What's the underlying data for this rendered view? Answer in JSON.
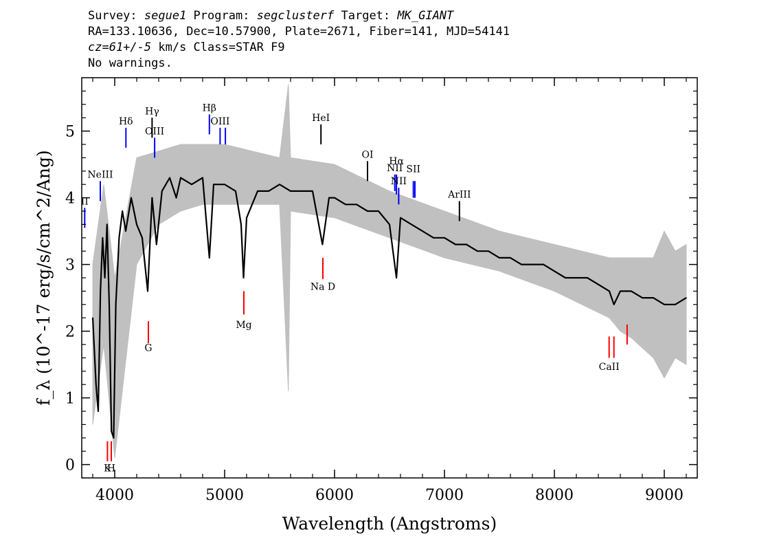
{
  "header": {
    "survey_label": "Survey: ",
    "survey": "segue1",
    "program_label": " Program: ",
    "program": "segclusterf",
    "target_label": " Target: ",
    "target": "MK_GIANT",
    "line2": "RA=133.10636, Dec=10.57900, Plate=2671, Fiber=141, MJD=54141",
    "cz": "cz=61+/-5",
    "line3_rest": " km/s Class=STAR F9",
    "line4": "No warnings."
  },
  "colors": {
    "flux": "#000000",
    "error": "#c0c0c0",
    "emission_line": "#0000ff",
    "absorption_line": "#ff0000",
    "other_line": "#000000"
  },
  "chart_data": {
    "type": "line",
    "xlabel": "Wavelength (Angstroms)",
    "ylabel": "f_λ (10^-17 erg/s/cm^2/Ang)",
    "xlim": [
      3700,
      9300
    ],
    "ylim": [
      -0.2,
      5.8
    ],
    "x_ticks": [
      4000,
      5000,
      6000,
      7000,
      8000,
      9000
    ],
    "y_ticks": [
      0,
      1,
      2,
      3,
      4,
      5
    ],
    "x_tick_labels": [
      "4000",
      "5000",
      "6000",
      "7000",
      "8000",
      "9000"
    ],
    "y_tick_labels": [
      "0",
      "1",
      "2",
      "3",
      "4",
      "5"
    ],
    "series": [
      {
        "role": "flux",
        "x": [
          3800,
          3830,
          3850,
          3870,
          3890,
          3910,
          3930,
          3950,
          3970,
          3990,
          4010,
          4040,
          4070,
          4100,
          4150,
          4200,
          4250,
          4300,
          4340,
          4380,
          4430,
          4500,
          4560,
          4600,
          4700,
          4800,
          4861,
          4900,
          5000,
          5100,
          5150,
          5172,
          5200,
          5300,
          5400,
          5500,
          5600,
          5700,
          5800,
          5890,
          5950,
          6000,
          6100,
          6200,
          6300,
          6400,
          6500,
          6563,
          6600,
          6700,
          6800,
          6900,
          7000,
          7100,
          7200,
          7300,
          7400,
          7500,
          7600,
          7700,
          7800,
          7900,
          8000,
          8100,
          8200,
          8300,
          8400,
          8500,
          8542,
          8600,
          8700,
          8800,
          8900,
          9000,
          9100,
          9200
        ],
        "y": [
          2.2,
          1.2,
          0.8,
          2.6,
          3.4,
          2.8,
          3.6,
          2.4,
          0.5,
          0.4,
          2.4,
          3.4,
          3.8,
          3.5,
          4.0,
          3.6,
          3.4,
          2.6,
          4.0,
          3.3,
          4.1,
          4.3,
          4.0,
          4.3,
          4.2,
          4.3,
          3.1,
          4.2,
          4.2,
          4.1,
          3.6,
          2.8,
          3.7,
          4.1,
          4.1,
          4.2,
          4.1,
          4.1,
          4.1,
          3.3,
          4.0,
          4.0,
          3.9,
          3.9,
          3.8,
          3.8,
          3.6,
          2.8,
          3.7,
          3.6,
          3.5,
          3.4,
          3.4,
          3.3,
          3.3,
          3.2,
          3.2,
          3.1,
          3.1,
          3.0,
          3.0,
          3.0,
          2.9,
          2.8,
          2.8,
          2.8,
          2.7,
          2.6,
          2.4,
          2.6,
          2.6,
          2.5,
          2.5,
          2.4,
          2.4,
          2.5
        ]
      },
      {
        "role": "error",
        "x": [
          3800,
          3900,
          4000,
          4200,
          4400,
          4600,
          4800,
          5000,
          5500,
          5580,
          5600,
          6000,
          6500,
          7000,
          7500,
          8000,
          8500,
          8600,
          8700,
          8900,
          9000,
          9100,
          9200
        ],
        "y_low": [
          0.6,
          1.8,
          0.1,
          3.0,
          3.6,
          3.8,
          3.9,
          3.9,
          3.9,
          1.1,
          3.8,
          3.7,
          3.4,
          3.1,
          2.9,
          2.6,
          2.2,
          2.0,
          1.9,
          1.6,
          1.3,
          1.6,
          1.5
        ],
        "y_high": [
          3.0,
          4.2,
          2.8,
          4.6,
          4.7,
          4.8,
          4.8,
          4.8,
          4.6,
          5.7,
          4.6,
          4.5,
          4.1,
          3.8,
          3.5,
          3.3,
          3.1,
          3.1,
          3.1,
          3.1,
          3.5,
          3.2,
          3.3
        ]
      }
    ],
    "annotations": [
      {
        "label": "K",
        "x": 3934,
        "y1": 0.05,
        "y2": 0.35,
        "kind": "absorption",
        "label_y": -0.1
      },
      {
        "label": "H",
        "x": 3969,
        "y1": 0.05,
        "y2": 0.35,
        "kind": "absorption",
        "label_y": -0.1
      },
      {
        "label": "G",
        "x": 4306,
        "y1": 1.82,
        "y2": 2.15,
        "kind": "absorption",
        "label_y": 1.7
      },
      {
        "label": "Mg",
        "x": 5175,
        "y1": 2.25,
        "y2": 2.6,
        "kind": "absorption",
        "label_y": 2.05
      },
      {
        "label": "Na D",
        "x": 5894,
        "y1": 2.78,
        "y2": 3.1,
        "kind": "absorption",
        "label_y": 2.62
      },
      {
        "label": "CaII",
        "x": 8498,
        "y1": 1.6,
        "y2": 1.92,
        "kind": "absorption",
        "label_y": 1.42
      },
      {
        "label": "",
        "x": 8542,
        "y1": 1.6,
        "y2": 1.92,
        "kind": "absorption",
        "label_y": 1.42
      },
      {
        "label": "",
        "x": 8662,
        "y1": 1.8,
        "y2": 2.1,
        "kind": "absorption",
        "label_y": 1.42
      },
      {
        "label": "II",
        "x": 3727,
        "y1": 3.55,
        "y2": 3.85,
        "kind": "emission",
        "label_y": 3.9
      },
      {
        "label": "NeIII",
        "x": 3869,
        "y1": 3.95,
        "y2": 4.25,
        "kind": "emission",
        "label_y": 4.3
      },
      {
        "label": "Hδ",
        "x": 4102,
        "y1": 4.75,
        "y2": 5.05,
        "kind": "emission",
        "label_y": 5.1
      },
      {
        "label": "Hγ",
        "x": 4340,
        "y1": 4.9,
        "y2": 5.2,
        "kind": "other",
        "label_y": 5.25
      },
      {
        "label": "OIII",
        "x": 4363,
        "y1": 4.6,
        "y2": 4.9,
        "kind": "emission",
        "label_y": 4.95
      },
      {
        "label": "Hβ",
        "x": 4861,
        "y1": 4.95,
        "y2": 5.25,
        "kind": "emission",
        "label_y": 5.3
      },
      {
        "label": "OIII",
        "x": 4959,
        "y1": 4.8,
        "y2": 5.05,
        "kind": "emission",
        "label_y": 5.1
      },
      {
        "label": "",
        "x": 5007,
        "y1": 4.8,
        "y2": 5.05,
        "kind": "emission",
        "label_y": 5.1
      },
      {
        "label": "HeI",
        "x": 5876,
        "y1": 4.8,
        "y2": 5.1,
        "kind": "other",
        "label_y": 5.15
      },
      {
        "label": "OI",
        "x": 6300,
        "y1": 4.25,
        "y2": 4.55,
        "kind": "other",
        "label_y": 4.6
      },
      {
        "label": "NII",
        "x": 6548,
        "y1": 4.1,
        "y2": 4.35,
        "kind": "emission",
        "label_y": 4.4
      },
      {
        "label": "Hα",
        "x": 6563,
        "y1": 4.05,
        "y2": 4.35,
        "kind": "emission",
        "label_y": 4.5
      },
      {
        "label": "NII",
        "x": 6584,
        "y1": 3.9,
        "y2": 4.15,
        "kind": "emission",
        "label_y": 4.2
      },
      {
        "label": "SII",
        "x": 6717,
        "y1": 4.0,
        "y2": 4.25,
        "kind": "emission",
        "label_y": 4.38
      },
      {
        "label": "",
        "x": 6731,
        "y1": 4.0,
        "y2": 4.25,
        "kind": "emission",
        "label_y": 4.38
      },
      {
        "label": "ArIII",
        "x": 7136,
        "y1": 3.65,
        "y2": 3.95,
        "kind": "other",
        "label_y": 4.0
      }
    ]
  }
}
